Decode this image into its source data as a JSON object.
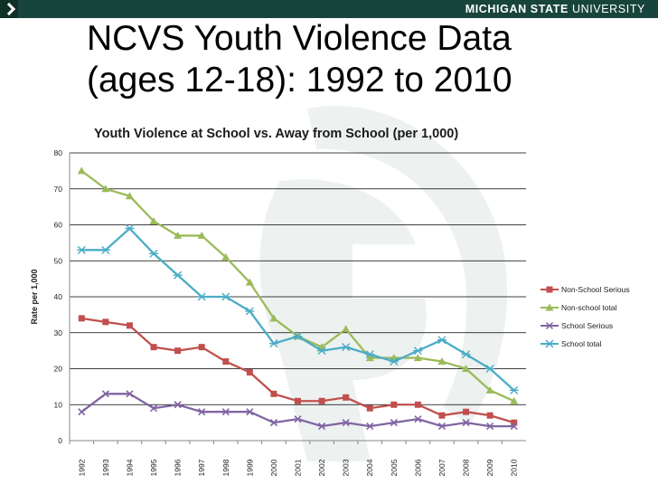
{
  "header": {
    "university_bold": "MICHIGAN STATE",
    "university_rest": " UNIVERSITY",
    "title": "NCVS Youth Violence Data\n(ages 12-18): 1992 to 2010"
  },
  "colors": {
    "brand": "#18453b",
    "series": [
      "#c0504d",
      "#9bbb59",
      "#8064a2",
      "#4bacc6"
    ]
  },
  "chart_data": {
    "type": "line",
    "title": "Youth Violence at School vs. Away from School (per 1,000)",
    "xlabel": "",
    "ylabel": "Rate per 1,000",
    "ylim": [
      0,
      80
    ],
    "yticks": [
      0,
      10,
      20,
      30,
      40,
      50,
      60,
      70,
      80
    ],
    "grid": true,
    "legend_position": "right",
    "x": [
      "1992",
      "1993",
      "1994",
      "1995",
      "1996",
      "1997",
      "1998",
      "1999",
      "2000",
      "2001",
      "2002",
      "2003",
      "2004",
      "2005",
      "2006",
      "2007",
      "2008",
      "2009",
      "2010"
    ],
    "series": [
      {
        "name": "Non-School Serious",
        "marker": "square",
        "values": [
          34,
          33,
          32,
          26,
          25,
          26,
          22,
          19,
          13,
          11,
          11,
          12,
          9,
          10,
          10,
          7,
          8,
          7,
          5
        ]
      },
      {
        "name": "Non-school total",
        "marker": "triangle",
        "values": [
          75,
          70,
          68,
          61,
          57,
          57,
          51,
          44,
          34,
          29,
          26,
          31,
          23,
          23,
          23,
          22,
          20,
          14,
          11
        ]
      },
      {
        "name": "School Serious",
        "marker": "x",
        "values": [
          8,
          13,
          13,
          9,
          10,
          8,
          8,
          8,
          5,
          6,
          4,
          5,
          4,
          5,
          6,
          4,
          5,
          4,
          4
        ]
      },
      {
        "name": "School total",
        "marker": "star",
        "values": [
          53,
          53,
          59,
          52,
          46,
          40,
          40,
          36,
          27,
          29,
          25,
          26,
          24,
          22,
          25,
          28,
          24,
          20,
          14
        ]
      }
    ]
  }
}
